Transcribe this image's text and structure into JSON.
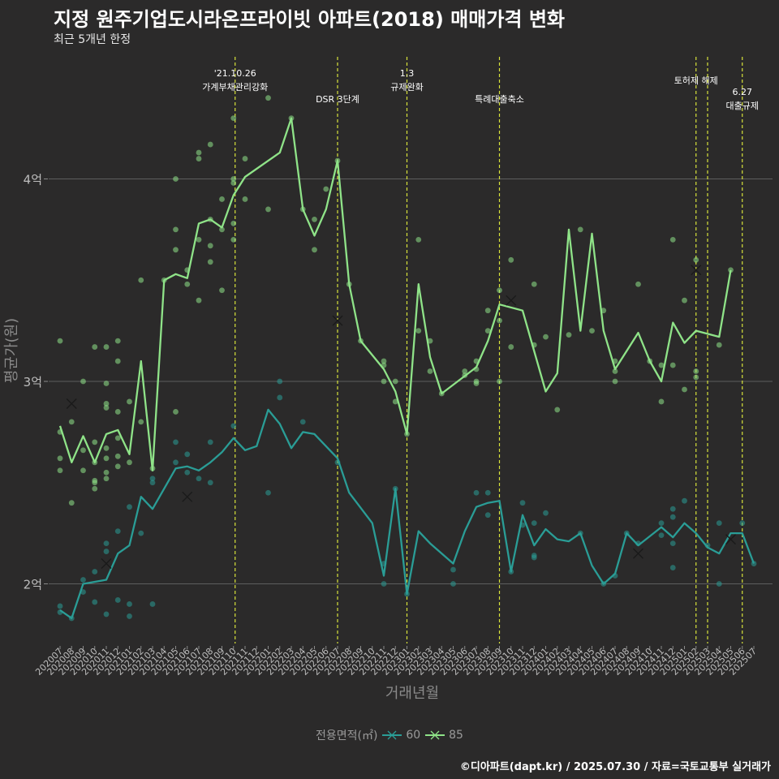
{
  "title": "지정 원주기업도시라온프라이빗 아파트(2018) 매매가격 변화",
  "subtitle": "최근 5개년 한정",
  "caption": "©디아파트(dapt.kr) / 2025.07.30 / 자료=국토교통부 실거래가",
  "legend": {
    "title": "전용면적(㎡)",
    "items": [
      {
        "label": "60",
        "color": "#2a9d96"
      },
      {
        "label": "85",
        "color": "#8fe388"
      }
    ]
  },
  "chart_data": {
    "type": "line",
    "xlabel": "거래년월",
    "ylabel": "평균가(원)",
    "ylim": [
      1.7,
      4.7
    ],
    "yticks": [
      {
        "value": 2,
        "label": "2억"
      },
      {
        "value": 3,
        "label": "3억"
      },
      {
        "value": 4,
        "label": "4억"
      }
    ],
    "grid": true,
    "legend_position": "bottom",
    "categories": [
      "202007",
      "202008",
      "202009",
      "202010",
      "202011",
      "202012",
      "202101",
      "202102",
      "202103",
      "202104",
      "202105",
      "202106",
      "202107",
      "202108",
      "202109",
      "202110",
      "202111",
      "202112",
      "202201",
      "202202",
      "202203",
      "202204",
      "202205",
      "202206",
      "202207",
      "202208",
      "202209",
      "202210",
      "202211",
      "202212",
      "202301",
      "202302",
      "202303",
      "202304",
      "202305",
      "202306",
      "202307",
      "202308",
      "202309",
      "202310",
      "202311",
      "202312",
      "202401",
      "202402",
      "202403",
      "202404",
      "202405",
      "202406",
      "202407",
      "202408",
      "202409",
      "202410",
      "202411",
      "202412",
      "202501",
      "202502",
      "202503",
      "202504",
      "202505",
      "202506",
      "202507"
    ],
    "annotations": [
      {
        "x": "202110",
        "lines": [
          "'21.10.26",
          "가계부채관리강화"
        ]
      },
      {
        "x": "202207",
        "lines": [
          "DSR 3단계"
        ]
      },
      {
        "x": "202301",
        "lines": [
          "1.3",
          "규제완화"
        ]
      },
      {
        "x": "202309",
        "lines": [
          "특례대출축소"
        ]
      },
      {
        "x": "202502",
        "lines": [
          "토허제 해제"
        ]
      },
      {
        "x": "202503",
        "lines": []
      },
      {
        "x": "202506",
        "lines": [
          "6.27",
          "대출규제"
        ]
      }
    ],
    "series": [
      {
        "name": "60",
        "color": "#2a9d96",
        "values": [
          [
            0,
            1.87
          ],
          [
            1,
            1.83
          ],
          [
            2,
            2.0
          ],
          [
            4,
            2.02
          ],
          [
            5,
            2.15
          ],
          [
            6,
            2.19
          ],
          [
            7,
            2.43
          ],
          [
            8,
            2.37
          ],
          [
            10,
            2.57
          ],
          [
            11,
            2.58
          ],
          [
            12,
            2.56
          ],
          [
            13,
            2.6
          ],
          [
            14,
            2.65
          ],
          [
            15,
            2.72
          ],
          [
            16,
            2.66
          ],
          [
            17,
            2.68
          ],
          [
            18,
            2.86
          ],
          [
            19,
            2.79
          ],
          [
            20,
            2.67
          ],
          [
            21,
            2.75
          ],
          [
            22,
            2.74
          ],
          [
            24,
            2.62
          ],
          [
            25,
            2.45
          ],
          [
            27,
            2.3
          ],
          [
            28,
            2.04
          ],
          [
            29,
            2.47
          ],
          [
            30,
            1.95
          ],
          [
            31,
            2.26
          ],
          [
            32,
            2.2
          ],
          [
            34,
            2.1
          ],
          [
            35,
            2.26
          ],
          [
            36,
            2.38
          ],
          [
            37,
            2.4
          ],
          [
            38,
            2.41
          ],
          [
            39,
            2.06
          ],
          [
            40,
            2.34
          ],
          [
            41,
            2.19
          ],
          [
            42,
            2.27
          ],
          [
            43,
            2.22
          ],
          [
            44,
            2.21
          ],
          [
            45,
            2.25
          ],
          [
            46,
            2.09
          ],
          [
            47,
            2.0
          ],
          [
            48,
            2.05
          ],
          [
            49,
            2.25
          ],
          [
            50,
            2.19
          ],
          [
            52,
            2.28
          ],
          [
            53,
            2.23
          ],
          [
            54,
            2.3
          ],
          [
            55,
            2.25
          ],
          [
            56,
            2.18
          ],
          [
            57,
            2.15
          ],
          [
            58,
            2.25
          ],
          [
            59,
            2.25
          ],
          [
            60,
            2.1
          ]
        ],
        "transactions": [
          [
            0,
            1.86
          ],
          [
            0,
            1.89
          ],
          [
            1,
            1.83
          ],
          [
            2,
            1.96
          ],
          [
            2,
            2.02
          ],
          [
            3,
            1.91
          ],
          [
            3,
            2.06
          ],
          [
            4,
            1.85
          ],
          [
            4,
            2.16
          ],
          [
            4,
            2.2
          ],
          [
            5,
            1.92
          ],
          [
            5,
            2.26
          ],
          [
            6,
            1.84
          ],
          [
            6,
            1.9
          ],
          [
            6,
            2.38
          ],
          [
            7,
            2.25
          ],
          [
            8,
            1.9
          ],
          [
            8,
            2.52
          ],
          [
            8,
            2.5
          ],
          [
            10,
            2.6
          ],
          [
            10,
            2.7
          ],
          [
            11,
            2.55
          ],
          [
            11,
            2.64
          ],
          [
            12,
            2.52
          ],
          [
            13,
            2.5
          ],
          [
            13,
            2.7
          ],
          [
            15,
            2.78
          ],
          [
            18,
            2.45
          ],
          [
            19,
            2.92
          ],
          [
            19,
            3.0
          ],
          [
            21,
            2.8
          ],
          [
            24,
            2.6
          ],
          [
            28,
            2.0
          ],
          [
            28,
            2.1
          ],
          [
            29,
            2.47
          ],
          [
            30,
            1.95
          ],
          [
            34,
            2.0
          ],
          [
            34,
            2.07
          ],
          [
            36,
            2.45
          ],
          [
            37,
            2.34
          ],
          [
            37,
            2.45
          ],
          [
            39,
            2.06
          ],
          [
            40,
            2.29
          ],
          [
            40,
            2.4
          ],
          [
            41,
            2.13
          ],
          [
            41,
            2.14
          ],
          [
            41,
            2.3
          ],
          [
            42,
            2.35
          ],
          [
            45,
            2.25
          ],
          [
            47,
            2.0
          ],
          [
            48,
            2.04
          ],
          [
            49,
            2.25
          ],
          [
            50,
            2.2
          ],
          [
            52,
            2.24
          ],
          [
            52,
            2.3
          ],
          [
            53,
            2.08
          ],
          [
            53,
            2.2
          ],
          [
            53,
            2.33
          ],
          [
            53,
            2.37
          ],
          [
            54,
            2.41
          ],
          [
            56,
            2.19
          ],
          [
            57,
            2.0
          ],
          [
            57,
            2.3
          ],
          [
            59,
            2.3
          ],
          [
            60,
            2.1
          ]
        ],
        "cancelled": [
          [
            4,
            2.1
          ],
          [
            11,
            2.43
          ],
          [
            50,
            2.15
          ],
          [
            58,
            2.22
          ]
        ]
      },
      {
        "name": "85",
        "color": "#8fe388",
        "values": [
          [
            0,
            2.78
          ],
          [
            1,
            2.6
          ],
          [
            2,
            2.73
          ],
          [
            3,
            2.6
          ],
          [
            4,
            2.74
          ],
          [
            5,
            2.76
          ],
          [
            6,
            2.64
          ],
          [
            7,
            3.1
          ],
          [
            8,
            2.56
          ],
          [
            9,
            3.5
          ],
          [
            10,
            3.53
          ],
          [
            11,
            3.51
          ],
          [
            12,
            3.78
          ],
          [
            13,
            3.8
          ],
          [
            14,
            3.76
          ],
          [
            15,
            3.92
          ],
          [
            16,
            4.01
          ],
          [
            19,
            4.13
          ],
          [
            20,
            4.3
          ],
          [
            21,
            3.85
          ],
          [
            22,
            3.72
          ],
          [
            23,
            3.85
          ],
          [
            24,
            4.09
          ],
          [
            25,
            3.48
          ],
          [
            26,
            3.2
          ],
          [
            28,
            3.06
          ],
          [
            29,
            2.95
          ],
          [
            30,
            2.74
          ],
          [
            31,
            3.48
          ],
          [
            32,
            3.12
          ],
          [
            33,
            2.94
          ],
          [
            36,
            3.07
          ],
          [
            37,
            3.2
          ],
          [
            38,
            3.38
          ],
          [
            40,
            3.35
          ],
          [
            42,
            2.95
          ],
          [
            43,
            3.04
          ],
          [
            44,
            3.75
          ],
          [
            45,
            3.25
          ],
          [
            46,
            3.73
          ],
          [
            47,
            3.25
          ],
          [
            48,
            3.06
          ],
          [
            50,
            3.24
          ],
          [
            51,
            3.1
          ],
          [
            52,
            3.0
          ],
          [
            53,
            3.29
          ],
          [
            54,
            3.19
          ],
          [
            55,
            3.25
          ],
          [
            57,
            3.22
          ],
          [
            58,
            3.55
          ]
        ],
        "transactions": [
          [
            0,
            3.2
          ],
          [
            0,
            2.75
          ],
          [
            0,
            2.62
          ],
          [
            0,
            2.56
          ],
          [
            1,
            2.8
          ],
          [
            1,
            2.4
          ],
          [
            2,
            3.0
          ],
          [
            2,
            2.66
          ],
          [
            2,
            2.56
          ],
          [
            3,
            3.17
          ],
          [
            3,
            2.7
          ],
          [
            3,
            2.6
          ],
          [
            3,
            2.51
          ],
          [
            3,
            2.5
          ],
          [
            3,
            2.47
          ],
          [
            4,
            3.17
          ],
          [
            4,
            2.99
          ],
          [
            4,
            2.89
          ],
          [
            4,
            2.87
          ],
          [
            4,
            2.67
          ],
          [
            4,
            2.62
          ],
          [
            4,
            2.55
          ],
          [
            4,
            2.52
          ],
          [
            5,
            3.2
          ],
          [
            5,
            3.1
          ],
          [
            5,
            2.85
          ],
          [
            5,
            2.72
          ],
          [
            5,
            2.63
          ],
          [
            5,
            2.58
          ],
          [
            6,
            2.9
          ],
          [
            6,
            2.6
          ],
          [
            7,
            3.5
          ],
          [
            7,
            2.8
          ],
          [
            8,
            2.57
          ],
          [
            9,
            3.5
          ],
          [
            10,
            3.75
          ],
          [
            10,
            3.65
          ],
          [
            10,
            4.0
          ],
          [
            10,
            2.85
          ],
          [
            11,
            3.55
          ],
          [
            11,
            3.48
          ],
          [
            12,
            4.13
          ],
          [
            12,
            4.1
          ],
          [
            12,
            3.7
          ],
          [
            12,
            3.4
          ],
          [
            13,
            4.17
          ],
          [
            13,
            3.67
          ],
          [
            13,
            3.59
          ],
          [
            13,
            3.8
          ],
          [
            14,
            3.75
          ],
          [
            14,
            3.9
          ],
          [
            14,
            3.45
          ],
          [
            15,
            4.3
          ],
          [
            15,
            4.0
          ],
          [
            15,
            3.78
          ],
          [
            15,
            3.7
          ],
          [
            15,
            3.98
          ],
          [
            16,
            4.1
          ],
          [
            16,
            3.9
          ],
          [
            18,
            4.4
          ],
          [
            18,
            3.85
          ],
          [
            20,
            4.3
          ],
          [
            21,
            3.85
          ],
          [
            22,
            3.8
          ],
          [
            22,
            3.65
          ],
          [
            23,
            3.95
          ],
          [
            24,
            4.09
          ],
          [
            25,
            3.48
          ],
          [
            26,
            3.2
          ],
          [
            28,
            3.1
          ],
          [
            28,
            3.08
          ],
          [
            28,
            3.0
          ],
          [
            29,
            3.0
          ],
          [
            29,
            2.9
          ],
          [
            30,
            2.74
          ],
          [
            31,
            3.7
          ],
          [
            31,
            3.25
          ],
          [
            32,
            3.2
          ],
          [
            32,
            3.05
          ],
          [
            33,
            2.94
          ],
          [
            35,
            3.05
          ],
          [
            35,
            3.03
          ],
          [
            36,
            3.1
          ],
          [
            36,
            3.06
          ],
          [
            36,
            3.0
          ],
          [
            36,
            2.99
          ],
          [
            37,
            3.35
          ],
          [
            37,
            3.25
          ],
          [
            38,
            3.45
          ],
          [
            38,
            3.3
          ],
          [
            38,
            3.0
          ],
          [
            39,
            3.6
          ],
          [
            39,
            3.17
          ],
          [
            41,
            3.48
          ],
          [
            41,
            3.18
          ],
          [
            42,
            3.22
          ],
          [
            43,
            2.86
          ],
          [
            44,
            3.23
          ],
          [
            45,
            3.75
          ],
          [
            46,
            3.25
          ],
          [
            47,
            3.35
          ],
          [
            48,
            3.1
          ],
          [
            48,
            3.05
          ],
          [
            48,
            3.0
          ],
          [
            50,
            3.48
          ],
          [
            51,
            3.1
          ],
          [
            52,
            3.08
          ],
          [
            52,
            2.9
          ],
          [
            53,
            3.7
          ],
          [
            53,
            3.08
          ],
          [
            54,
            3.4
          ],
          [
            54,
            2.96
          ],
          [
            55,
            3.6
          ],
          [
            55,
            3.05
          ],
          [
            55,
            3.02
          ],
          [
            57,
            3.18
          ],
          [
            58,
            3.55
          ]
        ],
        "cancelled": [
          [
            1,
            2.89
          ],
          [
            24,
            3.3
          ],
          [
            39,
            3.4
          ],
          [
            55,
            3.55
          ]
        ]
      }
    ]
  }
}
